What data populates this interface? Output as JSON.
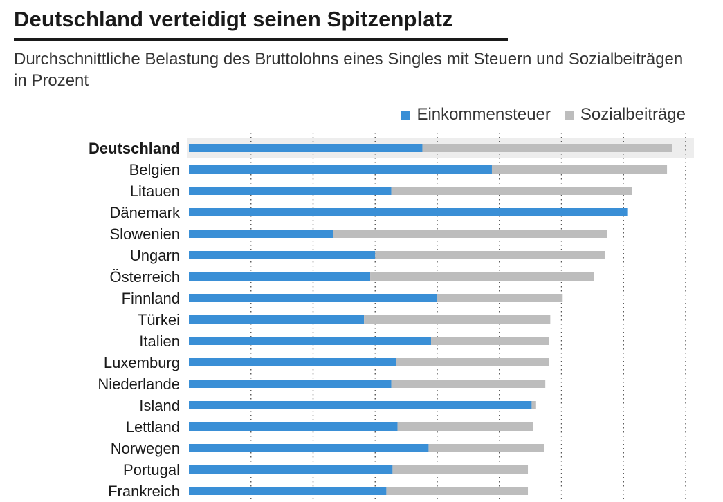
{
  "chart_data": {
    "type": "bar",
    "stacked": true,
    "orientation": "horizontal",
    "title": "Deutschland verteidigt seinen Spitzenplatz",
    "subtitle": "Durchschnittliche Belastung des Bruttolohns eines Singles mit Steuern und Sozialbeiträgen in Prozent",
    "xlabel": "",
    "ylabel": "",
    "xlim": [
      0,
      40
    ],
    "grid": true,
    "legend_position": "top-right",
    "highlight_category": "Deutschland",
    "categories": [
      "Deutschland",
      "Belgien",
      "Litauen",
      "Dänemark",
      "Slowenien",
      "Ungarn",
      "Österreich",
      "Finnland",
      "Türkei",
      "Italien",
      "Luxemburg",
      "Niederlande",
      "Island",
      "Lettland",
      "Norwegen",
      "Portugal",
      "Frankreich"
    ],
    "series": [
      {
        "name": "Einkommensteuer",
        "color": "#3a8fd6",
        "values": [
          18.8,
          24.4,
          16.3,
          35.3,
          11.6,
          15.0,
          14.6,
          20.0,
          14.1,
          19.5,
          16.7,
          16.3,
          27.6,
          16.8,
          19.3,
          16.4,
          15.9
        ]
      },
      {
        "name": "Sozialbeiträge",
        "color": "#bdbdbd",
        "values": [
          20.1,
          14.1,
          19.4,
          0.0,
          22.1,
          18.5,
          18.0,
          10.1,
          15.0,
          9.5,
          12.3,
          12.4,
          0.3,
          10.9,
          9.3,
          10.9,
          11.4
        ]
      }
    ]
  }
}
